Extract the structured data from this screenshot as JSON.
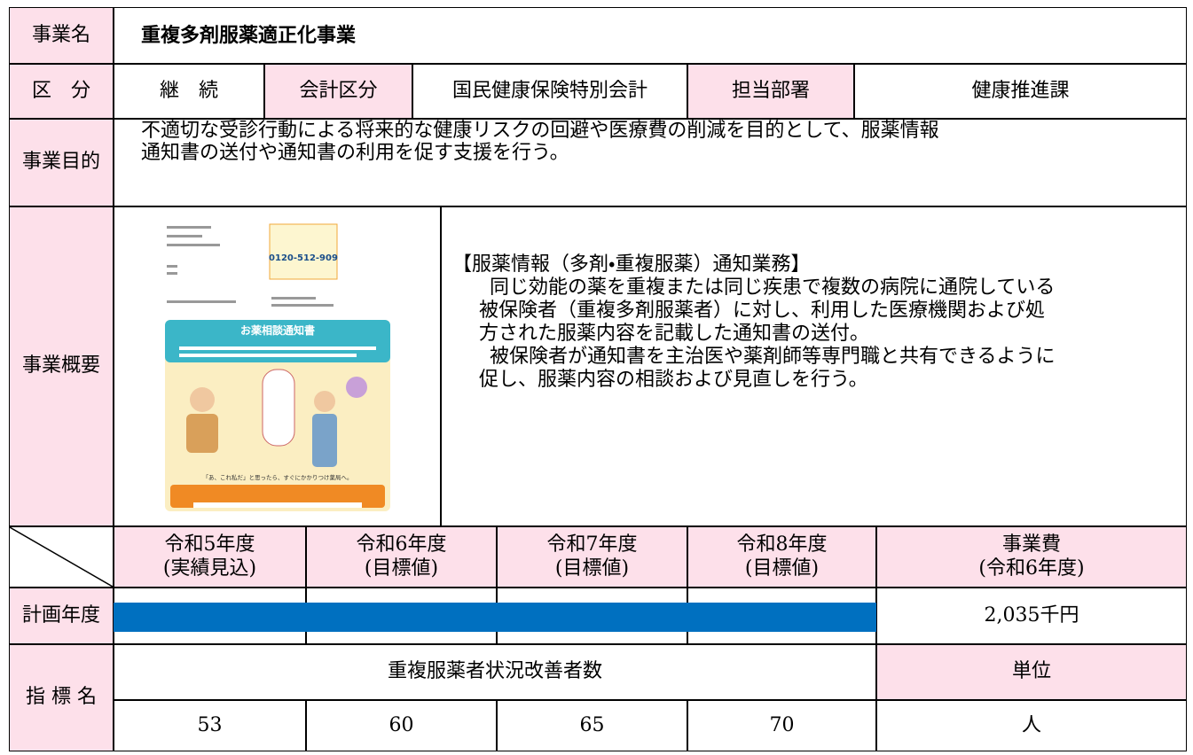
{
  "header": {
    "name_label": "事業名",
    "name": "重複多剤服薬適正化事業"
  },
  "info": {
    "category_label": "区　分",
    "category": "継　続",
    "account_label": "会計区分",
    "account": "国民健康保険特別会計",
    "department_label": "担当部署",
    "department": "健康推進課"
  },
  "purpose": {
    "label": "事業目的",
    "lines": [
      "不適切な受診行動による将来的な健康リスクの回避や医療費の削減を目的として、服薬情報",
      "通知書の送付や通知書の利用を促す支援を行う。"
    ]
  },
  "overview": {
    "label": "事業概要",
    "heading": "【服薬情報（多剤・重複服薬）通知業務】",
    "paragraphs": [
      [
        "同じ効能の薬を重複または同じ疾患で複数の病院に通院している",
        "被保険者（重複多剤服薬者）に対し、利用した医療機関および処",
        "方された服薬内容を記載した通知書の送付。"
      ],
      [
        "被保険者が通知書を主治医や薬剤師等専門職と共有できるように",
        "促し、服薬内容の相談および見直しを行う。"
      ]
    ]
  },
  "leaflet": {
    "title": "お薬相談通知書",
    "phone": "0120-512-909",
    "footer": "「あ、これ私だ」と思ったら、すぐにかかりつけ薬局へ。"
  },
  "schedule": {
    "years": [
      {
        "year": "令和5年度",
        "note": "(実績見込)"
      },
      {
        "year": "令和6年度",
        "note": "(目標値)"
      },
      {
        "year": "令和7年度",
        "note": "(目標値)"
      },
      {
        "year": "令和8年度",
        "note": "(目標値)"
      }
    ],
    "cost_label": "事業費",
    "cost_note": "(令和6年度)",
    "plan_label": "計画年度",
    "cost": "2,035千円"
  },
  "indicator": {
    "label": "指 標 名",
    "name": "重複服薬者状況改善者数",
    "unit_label": "単位",
    "values": [
      53,
      60,
      65,
      70
    ],
    "unit": "人"
  }
}
